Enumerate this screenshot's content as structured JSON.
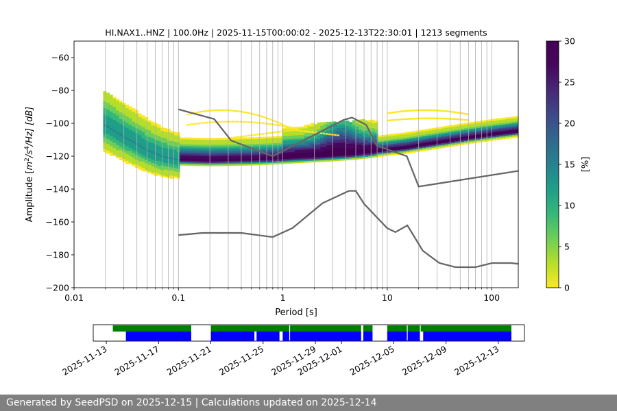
{
  "chart_data": [
    {
      "type": "heatmap",
      "title": "HI.NAX1..HNZ | 100.0Hz | 2025-11-15T00:00:02 - 2025-12-13T22:30:01 | 1213 segments",
      "xlabel": "Period [s]",
      "ylabel_parts": {
        "pre": "Amplitude [",
        "m": "m",
        "e1": "2",
        "s": "/s",
        "e2": "4",
        "hz": "/Hz] [dB]"
      },
      "xscale": "log",
      "xlim": [
        0.01,
        180
      ],
      "ylim": [
        -200,
        -50
      ],
      "xticks": [
        0.01,
        0.1,
        1,
        10,
        100
      ],
      "xtick_labels": [
        "0.01",
        "0.1",
        "1",
        "10",
        "100"
      ],
      "yticks": [
        -200,
        -180,
        -160,
        -140,
        -120,
        -100,
        -80,
        -60
      ],
      "ytick_labels": [
        "−200",
        "−180",
        "−160",
        "−140",
        "−120",
        "−100",
        "−80",
        "−60"
      ],
      "grid": "vertical",
      "colorbar": {
        "label": "[%]",
        "range": [
          0,
          30
        ],
        "ticks": [
          0,
          5,
          10,
          15,
          20,
          25,
          30
        ],
        "tick_labels": [
          "0",
          "5",
          "10",
          "15",
          "20",
          "25",
          "30"
        ],
        "colormap": "viridis_r"
      },
      "mode_curve": [
        [
          0.02,
          -101
        ],
        [
          0.03,
          -108
        ],
        [
          0.05,
          -116
        ],
        [
          0.07,
          -120
        ],
        [
          0.1,
          -122
        ],
        [
          0.2,
          -122.5
        ],
        [
          0.5,
          -122
        ],
        [
          0.8,
          -121.5
        ],
        [
          1.5,
          -120.5
        ],
        [
          3,
          -119.5
        ],
        [
          5,
          -118.5
        ],
        [
          8,
          -117
        ],
        [
          15,
          -115
        ],
        [
          30,
          -112
        ],
        [
          60,
          -109
        ],
        [
          100,
          -107
        ],
        [
          180,
          -105
        ]
      ],
      "series": [
        {
          "name": "NHNM",
          "x": [
            0.1,
            0.22,
            0.32,
            0.8,
            3.8,
            4.6,
            6.3,
            7.9,
            15.4,
            20,
            354.8
          ],
          "y": [
            -91.5,
            -97.4,
            -110.5,
            -120,
            -98,
            -96.5,
            -101,
            -113.5,
            -120,
            -138.5,
            -126
          ]
        },
        {
          "name": "NLNM",
          "x": [
            0.1,
            0.17,
            0.4,
            0.8,
            1.24,
            2.4,
            4.3,
            5,
            6,
            10,
            12,
            15.6,
            21.9,
            31.6,
            45,
            70,
            101,
            154,
            180
          ],
          "y": [
            -168,
            -166.7,
            -166.7,
            -169.2,
            -163.7,
            -148.6,
            -141.1,
            -141.1,
            -149,
            -163.8,
            -166.2,
            -162.1,
            -177.5,
            -185,
            -187.5,
            -187.5,
            -185,
            -185,
            -185.5
          ]
        }
      ]
    },
    {
      "type": "timeline",
      "date_ticks": [
        "2025-11-13",
        "2025-11-17",
        "2025-11-21",
        "2025-11-25",
        "2025-11-29",
        "2025-12-01",
        "2025-12-05",
        "2025-12-09",
        "2025-12-13"
      ],
      "range": [
        "2025-11-12",
        "2025-12-15"
      ],
      "green_segments": [
        [
          "2025-11-13T12:00",
          "2025-11-19T12:00"
        ],
        [
          "2025-11-21T00:00",
          "2025-12-02T12:00"
        ],
        [
          "2025-12-02T16:00",
          "2025-12-03T09:00"
        ],
        [
          "2025-12-04T12:00",
          "2025-12-14T00:00"
        ]
      ],
      "blue_segments": [
        [
          "2025-11-14T12:00",
          "2025-11-19T12:00"
        ],
        [
          "2025-11-21T00:00",
          "2025-11-24T08:00"
        ],
        [
          "2025-11-24T12:00",
          "2025-11-26T06:00"
        ],
        [
          "2025-11-26T12:00",
          "2025-12-02T12:00"
        ],
        [
          "2025-12-02T16:00",
          "2025-12-03T09:00"
        ],
        [
          "2025-12-04T12:00",
          "2025-12-07T00:00"
        ],
        [
          "2025-12-07T06:00",
          "2025-12-14T00:00"
        ]
      ],
      "white_gaps": [
        "2025-11-27T00:00",
        "2025-12-06T00:00",
        "2025-12-07T00:00"
      ]
    }
  ],
  "colors": {
    "model_curve": "#666666",
    "grid": "#b0b0b0",
    "timeline_green": "#008000",
    "timeline_blue": "#0000ff",
    "footer_bg": "#808080"
  },
  "footer": {
    "text": "Generated by SeedPSD on 2025-12-15 | Calculations updated on 2025-12-14"
  }
}
